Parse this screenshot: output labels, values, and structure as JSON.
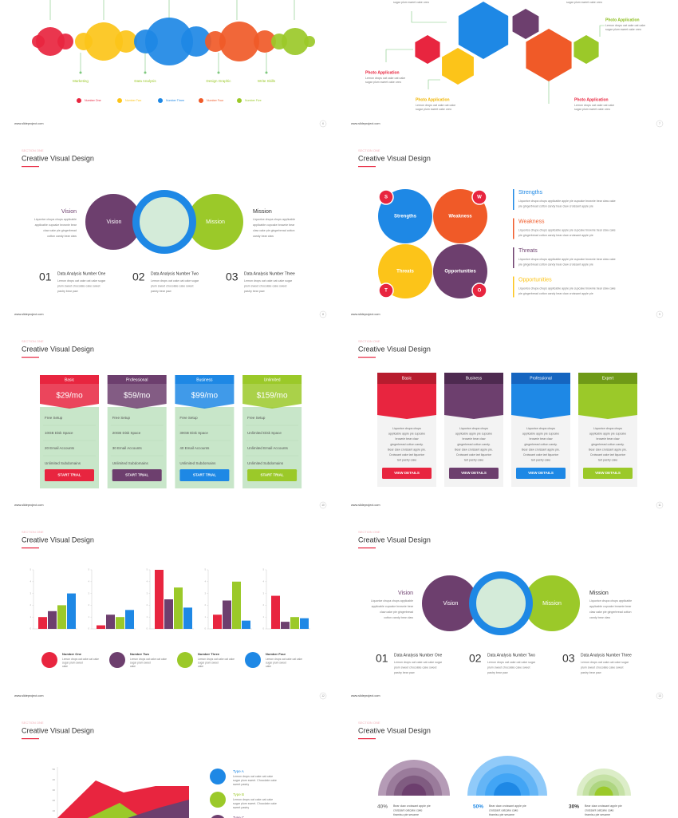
{
  "footer": "www.slideproject.com",
  "slides": [
    {
      "page": "6",
      "labels": [
        "Marketing",
        "Data Analysis",
        "Design Graphic",
        "Write Skills"
      ],
      "legend": [
        "Number One",
        "Number Two",
        "Number Three",
        "Number Four",
        "Number Five"
      ]
    },
    {
      "page": "7",
      "top": [
        "sugar plum sweet cake oreo",
        "sugar plum sweet cake oreo"
      ],
      "items": [
        {
          "title": "Photo Application",
          "lines": [
            "Lemon drops oat cake oat cake",
            "sugar plum sweet cake oreo"
          ]
        },
        {
          "title": "Photo Application",
          "lines": [
            "Lemon drops oat cake oat cake",
            "sugar plum sweet cake oreo"
          ]
        },
        {
          "title": "Photo Application",
          "lines": [
            "Lemon drops oat cake oat cake",
            "sugar plum sweet cake oreo"
          ]
        },
        {
          "title": "Photo Application",
          "lines": [
            "Lemon drops oat cake oat cake",
            "sugar plum sweet cake oreo"
          ]
        }
      ]
    },
    {
      "page": "8",
      "section": "SECTION ONE",
      "title": "Creative Visual Design",
      "vision": {
        "label": "Vision",
        "circle": "Vision",
        "lines": [
          "Liquorice chupa chups applicable",
          "applicable cupcake brownie bear",
          "claw cake pie gingerbread",
          "cotton candy bear claw"
        ]
      },
      "mission": {
        "label": "Mission",
        "circle": "Mission",
        "lines": [
          "Liquorice chupa chups applicable",
          "applicable cupcake brownie bear",
          "claw cake pie gingerbread cotton",
          "candy bear claw"
        ]
      },
      "numbers": [
        {
          "num": "01",
          "title": "Data Analysis  Number  One",
          "lines": [
            "Lemon drops oat cake oat cake sugar",
            "plum sweet chocolate cake sweet",
            "pastry bear paw"
          ]
        },
        {
          "num": "02",
          "title": "Data Analysis  Number  Two",
          "lines": [
            "Lemon drops oat cake oat cake sugar",
            "plum sweet chocolate cake sweet",
            "pastry bear paw"
          ]
        },
        {
          "num": "03",
          "title": "Data Analysis  Number  Three",
          "lines": [
            "Lemon drops oat cake oat cake sugar",
            "plum sweet chocolate cake sweet",
            "pastry bear paw"
          ]
        }
      ]
    },
    {
      "page": "9",
      "section": "SECTION ONE",
      "title": "Creative Visual Design",
      "quads": [
        {
          "name": "Strengths",
          "letter": "S"
        },
        {
          "name": "Weakness",
          "letter": "W"
        },
        {
          "name": "Threats",
          "letter": "T"
        },
        {
          "name": "Opportunities",
          "letter": "O"
        }
      ],
      "list": [
        {
          "name": "Strengths",
          "lines": [
            "Liquorice chupa chups applicable apple pie cupcake brownie bear claw cake",
            "pie gingerbread cotton candy bear claw croissant apple pie"
          ]
        },
        {
          "name": "Weakness",
          "lines": [
            "Liquorice chupa chups applicable apple pie cupcake brownie bear claw cake",
            "pie gingerbread cotton candy bear claw croissant apple pie"
          ]
        },
        {
          "name": "Threats",
          "lines": [
            "Liquorice chupa chups applicable apple pie cupcake brownie bear claw cake",
            "pie gingerbread cotton candy bear claw croissant apple pie"
          ]
        },
        {
          "name": "Opportunities",
          "lines": [
            "Liquorice chupa chups applicable apple pie cupcake brownie bear claw cake",
            "pie gingerbread cotton candy bear claw croissant apple pie"
          ]
        }
      ]
    },
    {
      "page": "10",
      "section": "SECTION ONE",
      "title": "Creative Visual Design",
      "plans": [
        {
          "name": "Basic",
          "price": "$29/mo",
          "features": [
            "Free Setup",
            "10GB Disk Space",
            "20 Email Accounts",
            "Unlimited Subdomains"
          ],
          "button": "START TRIAL"
        },
        {
          "name": "Professional",
          "price": "$59/mo",
          "features": [
            "Free Setup",
            "20GB Disk Space",
            "30 Email Accounts",
            "Unlimited Subdomains"
          ],
          "button": "START TRIAL"
        },
        {
          "name": "Business",
          "price": "$99/mo",
          "features": [
            "Free Setup",
            "30GB Disk Space",
            "40 Email Accounts",
            "Unlimited Subdomains"
          ],
          "button": "START TRIAL"
        },
        {
          "name": "Unlimited",
          "price": "$159/mo",
          "features": [
            "Free Setup",
            "Unlimited Disk Space",
            "Unlimited Email Accounts",
            "Unlimited Subdomains"
          ],
          "button": "START TRIAL"
        }
      ]
    },
    {
      "page": "11",
      "section": "SECTION ONE",
      "title": "Creative Visual Design",
      "plans": [
        {
          "name": "Basic",
          "lines": [
            "Liquorice chupa chups",
            "applicable apple pie cupcake",
            "brownie bear claw",
            "gingerbread cotton candy.",
            "Bear claw croissant apple pie.",
            "Croissant cake tart liquorice",
            "tart pastry cake"
          ],
          "button": "VIEW DETAILS"
        },
        {
          "name": "Business",
          "lines": [
            "Liquorice chupa chups",
            "applicable apple pie cupcake",
            "brownie bear claw",
            "gingerbread cotton candy.",
            "Bear claw croissant apple pie.",
            "Croissant cake tart liquorice",
            "tart pastry cake"
          ],
          "button": "VIEW DETAILS"
        },
        {
          "name": "Professional",
          "lines": [
            "Liquorice chupa chups",
            "applicable apple pie cupcake",
            "brownie bear claw",
            "gingerbread cotton candy.",
            "Bear claw croissant apple pie.",
            "Croissant cake tart liquorice",
            "tart pastry cake"
          ],
          "button": "VIEW DETAILS"
        },
        {
          "name": "Expert",
          "lines": [
            "Liquorice chupa chups",
            "applicable apple pie cupcake",
            "brownie bear claw",
            "gingerbread cotton candy.",
            "Bear claw croissant apple pie.",
            "Croissant cake tart liquorice",
            "tart pastry cake"
          ],
          "button": "VIEW DETAILS"
        }
      ]
    },
    {
      "page": "12",
      "section": "SECTION ONE",
      "title": "Creative Visual Design",
      "chart_data": {
        "type": "bar",
        "categories": [
          null,
          null,
          null,
          null,
          null
        ],
        "ylim": [
          0,
          5
        ],
        "yticks": [
          0,
          1,
          2,
          3,
          4,
          5
        ],
        "series": [
          {
            "name": "Number One",
            "color": "#e8253f",
            "values": [
              1,
              0.3,
              5,
              1.2,
              2.8
            ]
          },
          {
            "name": "Number Two",
            "color": "#6d3f6e",
            "values": [
              1.5,
              1.2,
              2.5,
              2.4,
              0.6
            ]
          },
          {
            "name": "Number Three",
            "color": "#9bc929",
            "values": [
              2,
              1,
              3.5,
              4,
              1
            ]
          },
          {
            "name": "Number Four",
            "color": "#1e88e5",
            "values": [
              3,
              1.6,
              1.8,
              0.7,
              0.9
            ]
          }
        ]
      },
      "legend_lines": [
        [
          "Lemon drops oat cake oat cake",
          "sugar plum sweet",
          "cake"
        ],
        [
          "Lemon drops oat cake oat cake",
          "sugar plum sweet",
          "cake"
        ],
        [
          "Lemon drops oat cake oat cake",
          "sugar plum sweet",
          "cake"
        ],
        [
          "Lemon drops oat cake oat cake",
          "sugar plum sweet",
          "cake"
        ]
      ]
    },
    {
      "page": "13",
      "section": "SECTION ONE",
      "title": "Creative Visual Design",
      "vision": {
        "label": "Vision",
        "circle": "Vision",
        "lines": [
          "Liquorice chupa chups applicable",
          "applicable cupcake brownie bear",
          "claw cake pie gingerbread",
          "cotton candy bear claw"
        ]
      },
      "mission": {
        "label": "Mission",
        "circle": "Mission",
        "lines": [
          "Liquorice chupa chups applicable",
          "applicable cupcake brownie bear",
          "claw cake pie gingerbread cotton",
          "candy bear claw"
        ]
      },
      "numbers": [
        {
          "num": "01",
          "title": "Data Analysis  Number  One",
          "lines": [
            "Lemon drops oat cake oat cake sugar",
            "plum sweet chocolate cake sweet",
            "pastry bear paw"
          ]
        },
        {
          "num": "02",
          "title": "Data Analysis  Number  Two",
          "lines": [
            "Lemon drops oat cake oat cake sugar",
            "plum sweet chocolate cake sweet",
            "pastry bear paw"
          ]
        },
        {
          "num": "03",
          "title": "Data Analysis  Number  Three",
          "lines": [
            "Lemon drops oat cake oat cake sugar",
            "plum sweet chocolate cake sweet",
            "pastry bear paw"
          ]
        }
      ]
    },
    {
      "section": "SECTION ONE",
      "title": "Creative Visual Design",
      "ticks": [
        "50",
        "40",
        "30",
        "20",
        "10"
      ],
      "legend": [
        {
          "name": "Type A",
          "lines": [
            "Lemon drops oat cake oat cake",
            "sugar plum sweet. Chocolate cake",
            "sweet pastry"
          ]
        },
        {
          "name": "Type B",
          "lines": [
            "Lemon drops oat cake oat cake",
            "sugar plum sweet. Chocolate cake",
            "sweet pastry"
          ]
        },
        {
          "name": "Type C",
          "lines": []
        }
      ]
    },
    {
      "section": "SECTION ONE",
      "title": "Creative Visual Design",
      "items": [
        {
          "pct": "40%",
          "lines": [
            "Bear claw croissant apple pie",
            "croissant oatcake cake",
            "tiramisu pie sesame"
          ]
        },
        {
          "pct": "50%",
          "lines": [
            "Bear claw croissant apple pie",
            "croissant oatcake cake",
            "tiramisu pie sesame"
          ]
        },
        {
          "pct": "30%",
          "lines": [
            "Bear claw croissant apple pie",
            "croissant oatcake cake",
            "tiramisu pie sesame"
          ]
        }
      ]
    }
  ]
}
